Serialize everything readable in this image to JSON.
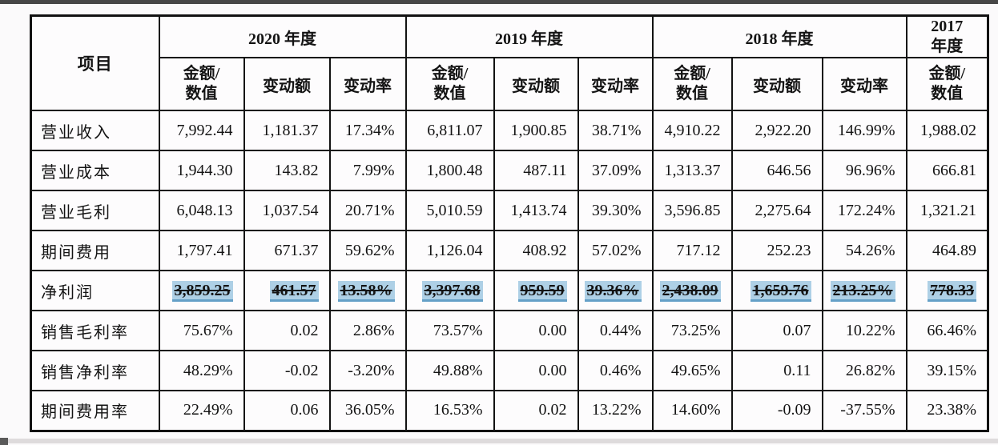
{
  "table": {
    "corner_header": "项目",
    "year_groups": [
      {
        "label": "2020 年度",
        "columns": [
          "金额/数值",
          "变动额",
          "变动率"
        ]
      },
      {
        "label": "2019 年度",
        "columns": [
          "金额/数值",
          "变动额",
          "变动率"
        ]
      },
      {
        "label": "2018 年度",
        "columns": [
          "金额/数值",
          "变动额",
          "变动率"
        ]
      },
      {
        "label": "2017 年度",
        "columns": [
          "金额/数值"
        ]
      }
    ],
    "highlight_color": "#aed0e6",
    "rows": [
      {
        "label": "营业收入",
        "highlighted": false,
        "values": [
          "7,992.44",
          "1,181.37",
          "17.34%",
          "6,811.07",
          "1,900.85",
          "38.71%",
          "4,910.22",
          "2,922.20",
          "146.99%",
          "1,988.02"
        ]
      },
      {
        "label": "营业成本",
        "highlighted": false,
        "values": [
          "1,944.30",
          "143.82",
          "7.99%",
          "1,800.48",
          "487.11",
          "37.09%",
          "1,313.37",
          "646.56",
          "96.96%",
          "666.81"
        ]
      },
      {
        "label": "营业毛利",
        "highlighted": false,
        "values": [
          "6,048.13",
          "1,037.54",
          "20.71%",
          "5,010.59",
          "1,413.74",
          "39.30%",
          "3,596.85",
          "2,275.64",
          "172.24%",
          "1,321.21"
        ]
      },
      {
        "label": "期间费用",
        "highlighted": false,
        "values": [
          "1,797.41",
          "671.37",
          "59.62%",
          "1,126.04",
          "408.92",
          "57.02%",
          "717.12",
          "252.23",
          "54.26%",
          "464.89"
        ]
      },
      {
        "label": "净利润",
        "highlighted": true,
        "values": [
          "3,859.25",
          "461.57",
          "13.58%",
          "3,397.68",
          "959.59",
          "39.36%",
          "2,438.09",
          "1,659.76",
          "213.25%",
          "778.33"
        ]
      },
      {
        "label": "销售毛利率",
        "highlighted": false,
        "values": [
          "75.67%",
          "0.02",
          "2.86%",
          "73.57%",
          "0.00",
          "0.44%",
          "73.25%",
          "0.07",
          "10.22%",
          "66.46%"
        ]
      },
      {
        "label": "销售净利率",
        "highlighted": false,
        "values": [
          "48.29%",
          "-0.02",
          "-3.20%",
          "49.88%",
          "0.00",
          "0.46%",
          "49.65%",
          "0.11",
          "26.82%",
          "39.15%"
        ]
      },
      {
        "label": "期间费用率",
        "highlighted": false,
        "values": [
          "22.49%",
          "0.06",
          "36.05%",
          "16.53%",
          "0.02",
          "13.22%",
          "14.60%",
          "-0.09",
          "-37.55%",
          "23.38%"
        ]
      }
    ]
  }
}
